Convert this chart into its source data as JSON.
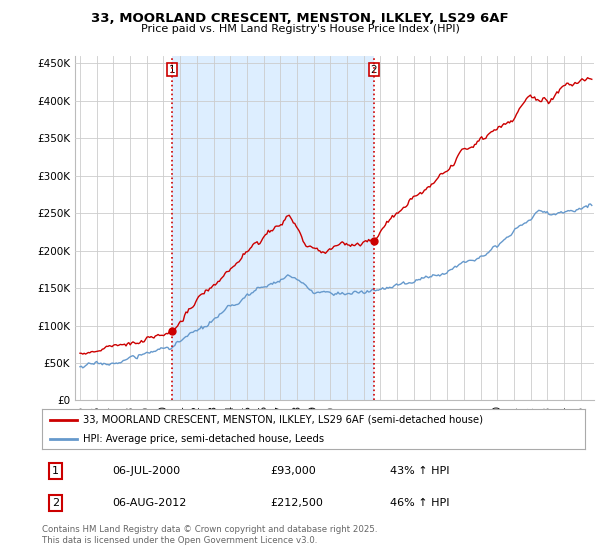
{
  "title": "33, MOORLAND CRESCENT, MENSTON, ILKLEY, LS29 6AF",
  "subtitle": "Price paid vs. HM Land Registry's House Price Index (HPI)",
  "title_fontsize": 9.5,
  "subtitle_fontsize": 8,
  "background_color": "#ffffff",
  "plot_bg_color": "#ffffff",
  "plot_shade_color": "#ddeeff",
  "grid_color": "#cccccc",
  "sale1_date": 2000.51,
  "sale2_date": 2012.6,
  "vline_color": "#cc0000",
  "dot_color": "#cc0000",
  "hpi_line_color": "#6699cc",
  "price_line_color": "#cc0000",
  "legend_label_price": "33, MOORLAND CRESCENT, MENSTON, ILKLEY, LS29 6AF (semi-detached house)",
  "legend_label_hpi": "HPI: Average price, semi-detached house, Leeds",
  "table_date1": "06-JUL-2000",
  "table_price1": "£93,000",
  "table_hpi1": "43% ↑ HPI",
  "table_date2": "06-AUG-2012",
  "table_price2": "£212,500",
  "table_hpi2": "46% ↑ HPI",
  "footer": "Contains HM Land Registry data © Crown copyright and database right 2025.\nThis data is licensed under the Open Government Licence v3.0.",
  "ylim": [
    0,
    460000
  ],
  "xlim_start": 1994.7,
  "xlim_end": 2025.8
}
